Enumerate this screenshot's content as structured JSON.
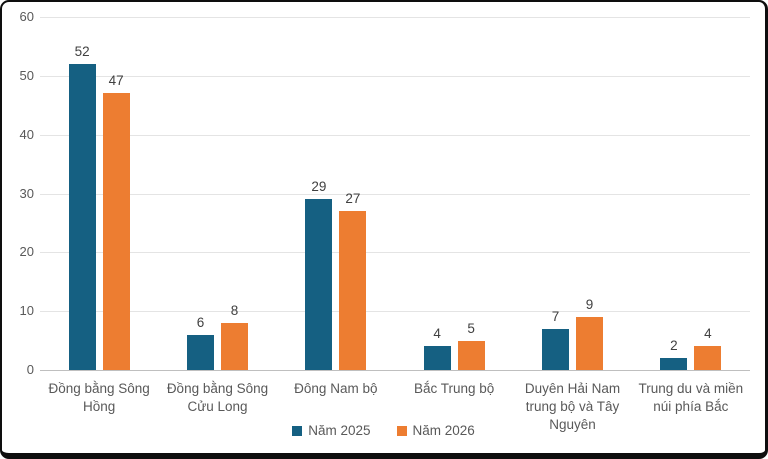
{
  "chart_data": {
    "type": "bar",
    "title": "",
    "categories": [
      "Đồng bằng Sông Hồng",
      "Đồng bằng Sông Cửu Long",
      "Đông Nam bộ",
      "Bắc Trung bộ",
      "Duyên Hải Nam trung bộ và Tây Nguyên",
      "Trung du và miền núi phía Bắc"
    ],
    "series": [
      {
        "name": "Năm 2025",
        "color": "#156082",
        "values": [
          52,
          6,
          29,
          4,
          7,
          2
        ]
      },
      {
        "name": "Năm 2026",
        "color": "#ED7D31",
        "values": [
          47,
          8,
          27,
          5,
          9,
          4
        ]
      }
    ],
    "yticks": [
      0,
      10,
      20,
      30,
      40,
      50,
      60
    ],
    "ylim": [
      0,
      60
    ],
    "grid": true,
    "legend_position": "bottom",
    "colors": {
      "gridline": "#e4e4e4",
      "axis_line": "#bfbfbf",
      "axis_text": "#595959",
      "value_label_text": "#404040",
      "background": "#ffffff",
      "frame_border": "#0e0e0e"
    }
  }
}
